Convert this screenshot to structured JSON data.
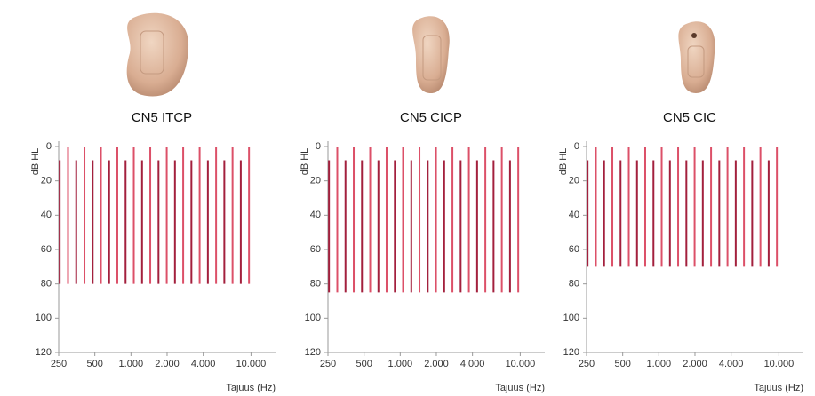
{
  "chart_data": [
    {
      "type": "range",
      "title": "CN5 ITCP",
      "ylabel": "dB HL",
      "xlabel": "Tajuus (Hz)",
      "log_x": true,
      "xlim": [
        250,
        13500
      ],
      "ylim": [
        120,
        0
      ],
      "xticks": [
        250,
        500,
        {
          "value": 1000,
          "label": "1.000"
        },
        {
          "value": 2000,
          "label": "2.000"
        },
        {
          "value": 4000,
          "label": "4.000"
        },
        {
          "value": 10000,
          "label": "10.000"
        }
      ],
      "yticks": [
        0,
        20,
        40,
        60,
        80,
        100,
        120
      ],
      "series": [
        {
          "color": "#a3203d",
          "x": [
            255,
            350,
            480,
            658,
            902,
            1237,
            1696,
            2325,
            3188,
            4372,
            5994,
            8219
          ],
          "from": 8,
          "to": 80
        },
        {
          "color": "#dc5068",
          "x": [
            299,
            410,
            562,
            770,
            1056,
            1448,
            1986,
            2723,
            3733,
            5119,
            7019,
            9625
          ],
          "from": 0,
          "to": 80
        }
      ]
    },
    {
      "type": "range",
      "title": "CN5 CICP",
      "ylabel": "dB HL",
      "xlabel": "Tajuus (Hz)",
      "log_x": true,
      "xlim": [
        250,
        13500
      ],
      "ylim": [
        120,
        0
      ],
      "xticks": [
        250,
        500,
        {
          "value": 1000,
          "label": "1.000"
        },
        {
          "value": 2000,
          "label": "2.000"
        },
        {
          "value": 4000,
          "label": "4.000"
        },
        {
          "value": 10000,
          "label": "10.000"
        }
      ],
      "yticks": [
        0,
        20,
        40,
        60,
        80,
        100,
        120
      ],
      "series": [
        {
          "color": "#a3203d",
          "x": [
            255,
            350,
            480,
            658,
            902,
            1237,
            1696,
            2325,
            3188,
            4372,
            5994,
            8219
          ],
          "from": 8,
          "to": 85
        },
        {
          "color": "#dc5068",
          "x": [
            299,
            410,
            562,
            770,
            1056,
            1448,
            1986,
            2723,
            3733,
            5119,
            7019,
            9625
          ],
          "from": 0,
          "to": 85
        }
      ]
    },
    {
      "type": "range",
      "title": "CN5 CIC",
      "ylabel": "dB HL",
      "xlabel": "Tajuus (Hz)",
      "log_x": true,
      "xlim": [
        250,
        13500
      ],
      "ylim": [
        120,
        0
      ],
      "xticks": [
        250,
        500,
        {
          "value": 1000,
          "label": "1.000"
        },
        {
          "value": 2000,
          "label": "2.000"
        },
        {
          "value": 4000,
          "label": "4.000"
        },
        {
          "value": 10000,
          "label": "10.000"
        }
      ],
      "yticks": [
        0,
        20,
        40,
        60,
        80,
        100,
        120
      ],
      "series": [
        {
          "color": "#a3203d",
          "x": [
            255,
            350,
            480,
            658,
            902,
            1237,
            1696,
            2325,
            3188,
            4372,
            5994,
            8219
          ],
          "from": 8,
          "to": 70
        },
        {
          "color": "#dc5068",
          "x": [
            299,
            410,
            562,
            770,
            1056,
            1448,
            1986,
            2723,
            3733,
            5119,
            7019,
            9625
          ],
          "from": 0,
          "to": 70
        }
      ]
    }
  ]
}
